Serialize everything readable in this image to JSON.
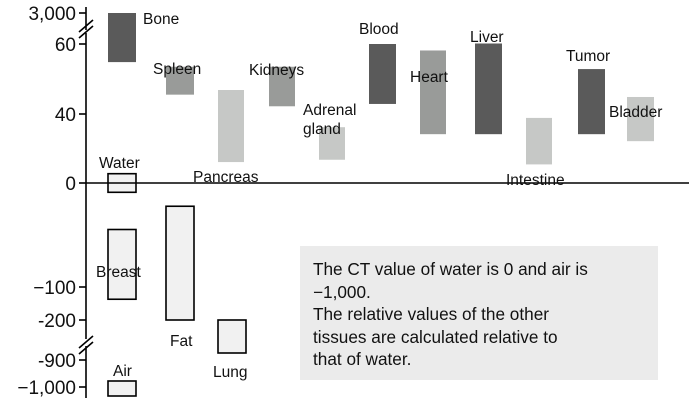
{
  "chart_data": {
    "type": "bar",
    "title": "",
    "xlabel": "",
    "ylabel": "",
    "yticks": [
      "3,000",
      "60",
      "40",
      "0",
      "−100",
      "-200",
      "-900",
      "−1,000"
    ],
    "axis_breaks": [
      {
        "between": [
          60,
          3000
        ]
      },
      {
        "between": [
          -900,
          -200
        ]
      }
    ],
    "bars": [
      {
        "label": "Bone",
        "low": 52,
        "high": 3000,
        "color": "#5a5a5a"
      },
      {
        "label": "Spleen",
        "low": 38,
        "high": 50,
        "color": "#999b99"
      },
      {
        "label": "Pancreas",
        "low": 9,
        "high": 40,
        "color": "#c6c8c6"
      },
      {
        "label": "Kidneys",
        "low": 33,
        "high": 50,
        "color": "#999b99"
      },
      {
        "label": "Adrenal gland",
        "label_lines": [
          "Adrenal",
          "gland"
        ],
        "low": 10,
        "high": 24,
        "color": "#c6c8c6"
      },
      {
        "label": "Blood",
        "low": 34,
        "high": 63,
        "color": "#5a5a5a"
      },
      {
        "label": "Heart",
        "low": 21,
        "high": 57,
        "color": "#999b99"
      },
      {
        "label": "Liver",
        "low": 21,
        "high": 60,
        "color": "#5a5a5a"
      },
      {
        "label": "Intestine",
        "low": 8,
        "high": 28,
        "color": "#c6c8c6"
      },
      {
        "label": "Tumor",
        "low": 21,
        "high": 49,
        "color": "#5a5a5a"
      },
      {
        "label": "Bladder",
        "low": 18,
        "high": 37,
        "color": "#c6c8c6"
      },
      {
        "label": "Water",
        "low": -4,
        "high": 4,
        "color": "#f1f1f1"
      },
      {
        "label": "Breast",
        "low": -50,
        "high": -20,
        "color": "#f1f1f1"
      },
      {
        "label": "Fat",
        "low": -200,
        "high": -10,
        "color": "#f1f1f1"
      },
      {
        "label": "Lung",
        "low": -850,
        "high": -200,
        "color": "#f1f1f1"
      },
      {
        "label": "Air",
        "low": -1000,
        "high": -1000,
        "color": "#f1f1f1"
      }
    ],
    "legend": "none",
    "grid": false
  },
  "note": {
    "lines": [
      "The CT value of water is 0 and air is",
      "−1,000.",
      "The relative values of the other",
      "tissues are calculated relative to",
      "that of water."
    ],
    "background": "#ebebeb"
  }
}
